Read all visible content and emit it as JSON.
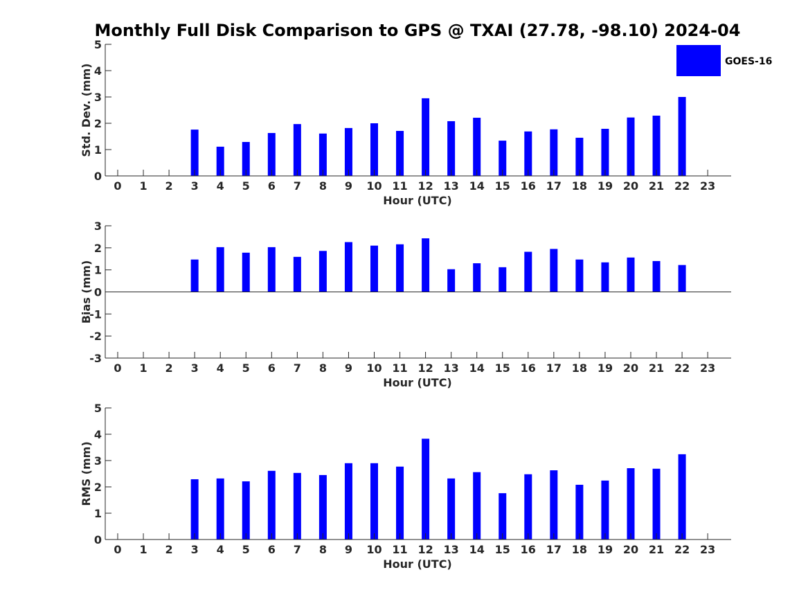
{
  "title": "Monthly Full Disk Comparison to GPS @ TXAI (27.78, -98.10) 2024-04",
  "colors": {
    "bar": "#0000ff",
    "axis": "#262626",
    "background": "#ffffff"
  },
  "legend": {
    "label": "GOES-16",
    "color": "#0000ff",
    "position": "top-right"
  },
  "chart_data": [
    {
      "type": "bar",
      "ylabel": "Std. Dev. (mm)",
      "xlabel": "Hour (UTC)",
      "ylim": [
        0,
        5
      ],
      "yticks": [
        "0",
        "1",
        "2",
        "3",
        "4",
        "5"
      ],
      "categories": [
        "0",
        "1",
        "2",
        "3",
        "4",
        "5",
        "6",
        "7",
        "8",
        "9",
        "10",
        "11",
        "12",
        "13",
        "14",
        "15",
        "16",
        "17",
        "18",
        "19",
        "20",
        "21",
        "22",
        "23"
      ],
      "series": [
        {
          "name": "GOES-16",
          "values": [
            null,
            null,
            null,
            1.76,
            1.11,
            1.29,
            1.63,
            1.97,
            1.61,
            1.82,
            2.0,
            1.71,
            2.95,
            2.08,
            2.21,
            1.34,
            1.69,
            1.77,
            1.45,
            1.79,
            2.22,
            2.29,
            3.0,
            null
          ]
        }
      ],
      "grid": false
    },
    {
      "type": "bar",
      "ylabel": "Bias (mm)",
      "xlabel": "Hour (UTC)",
      "ylim": [
        -3,
        3
      ],
      "yticks": [
        "-3",
        "-2",
        "-1",
        "0",
        "1",
        "2",
        "3"
      ],
      "zero_line": true,
      "categories": [
        "0",
        "1",
        "2",
        "3",
        "4",
        "5",
        "6",
        "7",
        "8",
        "9",
        "10",
        "11",
        "12",
        "13",
        "14",
        "15",
        "16",
        "17",
        "18",
        "19",
        "20",
        "21",
        "22",
        "23"
      ],
      "series": [
        {
          "name": "GOES-16",
          "values": [
            null,
            null,
            null,
            1.47,
            2.03,
            1.78,
            2.03,
            1.59,
            1.86,
            2.26,
            2.1,
            2.16,
            2.43,
            1.03,
            1.3,
            1.12,
            1.82,
            1.95,
            1.47,
            1.34,
            1.56,
            1.4,
            1.22,
            null
          ]
        }
      ],
      "grid": false
    },
    {
      "type": "bar",
      "ylabel": "RMS (mm)",
      "xlabel": "Hour (UTC)",
      "ylim": [
        0,
        5
      ],
      "yticks": [
        "0",
        "1",
        "2",
        "3",
        "4",
        "5"
      ],
      "categories": [
        "0",
        "1",
        "2",
        "3",
        "4",
        "5",
        "6",
        "7",
        "8",
        "9",
        "10",
        "11",
        "12",
        "13",
        "14",
        "15",
        "16",
        "17",
        "18",
        "19",
        "20",
        "21",
        "22",
        "23"
      ],
      "series": [
        {
          "name": "GOES-16",
          "values": [
            null,
            null,
            null,
            2.29,
            2.32,
            2.21,
            2.61,
            2.53,
            2.45,
            2.9,
            2.9,
            2.77,
            3.83,
            2.32,
            2.56,
            1.76,
            2.48,
            2.63,
            2.08,
            2.24,
            2.71,
            2.69,
            3.24,
            null
          ]
        }
      ],
      "grid": false
    }
  ]
}
